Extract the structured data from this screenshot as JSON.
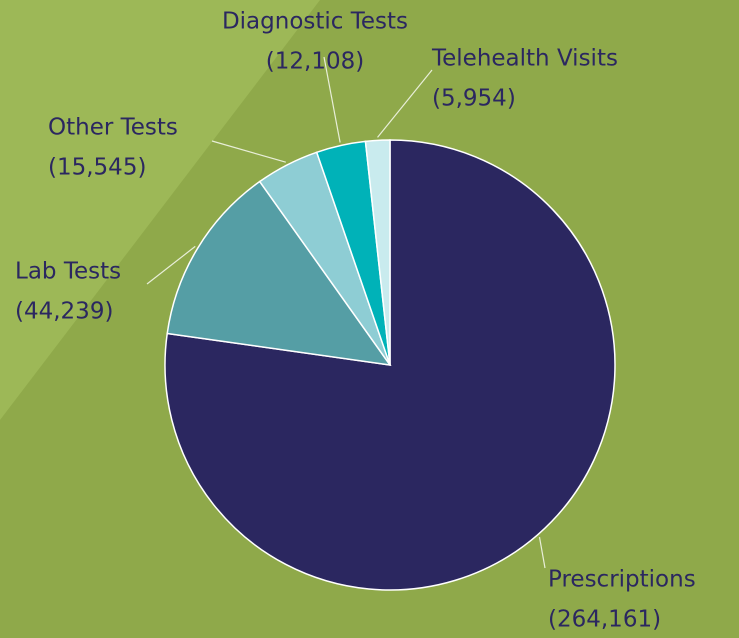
{
  "chart_data": {
    "type": "pie",
    "categories": [
      "Prescriptions",
      "Lab Tests",
      "Other Tests",
      "Diagnostic Tests",
      "Telehealth Visits"
    ],
    "values": [
      264161,
      44239,
      15545,
      12108,
      5954
    ],
    "value_labels": [
      "(264,161)",
      "(44,239)",
      "(15,545)",
      "(12,108)",
      "(5,954)"
    ],
    "colors": [
      "#2b2760",
      "#559ea5",
      "#8ecdd4",
      "#00b2b8",
      "#c9ebee"
    ]
  }
}
